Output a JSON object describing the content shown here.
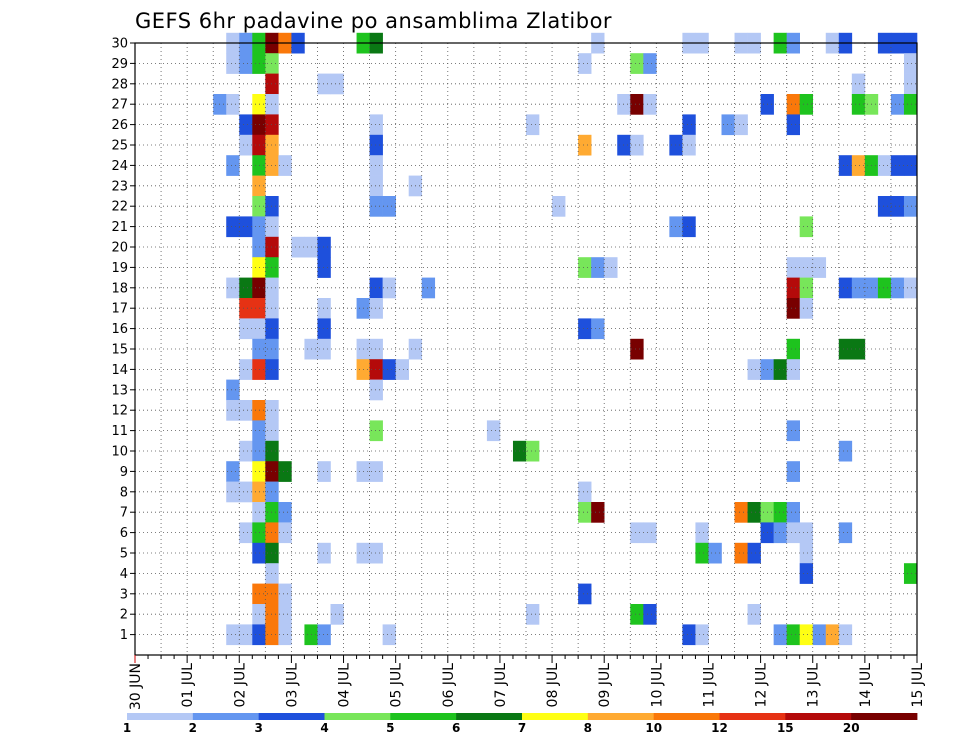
{
  "chart_data": {
    "type": "heatmap",
    "title": "GEFS 6hr padavine po ansamblima Zlatibor",
    "x_tick_labels": [
      "30 JUN",
      "01 JUL",
      "02 JUL",
      "03 JUL",
      "04 JUL",
      "05 JUL",
      "06 JUL",
      "07 JUL",
      "08 JUL",
      "09 JUL",
      "10 JUL",
      "11 JUL",
      "12 JUL",
      "13 JUL",
      "14 JUL",
      "15 JUL"
    ],
    "y_tick_labels": [
      "1",
      "2",
      "3",
      "4",
      "5",
      "6",
      "7",
      "8",
      "9",
      "10",
      "11",
      "12",
      "13",
      "14",
      "15",
      "16",
      "17",
      "18",
      "19",
      "20",
      "21",
      "22",
      "23",
      "24",
      "25",
      "26",
      "27",
      "28",
      "29",
      "30"
    ],
    "xlim": [
      0,
      60
    ],
    "ylim": [
      0,
      30
    ],
    "grid": "dotted",
    "legend": {
      "placement": "bottom",
      "labels": [
        "1",
        "2",
        "3",
        "4",
        "5",
        "6",
        "7",
        "8",
        "10",
        "12",
        "15",
        "20"
      ],
      "colors": [
        "#b4c8f5",
        "#6496f0",
        "#1e50dc",
        "#78e65a",
        "#1ec31e",
        "#0a7814",
        "#ffff14",
        "#ffaa32",
        "#fa780a",
        "#e63214",
        "#b40a0a",
        "#780000"
      ]
    },
    "cells_note": "each cell: [x_step (6-hourly step from 30 JUN 00Z), member (0-30), color class index 0-11]",
    "cells": [
      [
        7,
        30,
        0
      ],
      [
        8,
        30,
        1
      ],
      [
        9,
        30,
        4
      ],
      [
        10,
        30,
        11
      ],
      [
        11,
        30,
        8
      ],
      [
        12,
        30,
        2
      ],
      [
        17,
        30,
        4
      ],
      [
        18,
        30,
        5
      ],
      [
        35,
        30,
        0
      ],
      [
        42,
        30,
        0
      ],
      [
        43,
        30,
        0
      ],
      [
        46,
        30,
        0
      ],
      [
        47,
        30,
        0
      ],
      [
        49,
        30,
        4
      ],
      [
        50,
        30,
        1
      ],
      [
        53,
        30,
        0
      ],
      [
        54,
        30,
        2
      ],
      [
        57,
        30,
        2
      ],
      [
        58,
        30,
        2
      ],
      [
        59,
        30,
        2
      ],
      [
        7,
        29,
        0
      ],
      [
        8,
        29,
        1
      ],
      [
        9,
        29,
        4
      ],
      [
        10,
        29,
        3
      ],
      [
        34,
        29,
        0
      ],
      [
        38,
        29,
        3
      ],
      [
        39,
        29,
        1
      ],
      [
        59,
        29,
        0
      ],
      [
        10,
        28,
        10
      ],
      [
        14,
        28,
        0
      ],
      [
        15,
        28,
        0
      ],
      [
        55,
        28,
        0
      ],
      [
        59,
        28,
        0
      ],
      [
        6,
        27,
        1
      ],
      [
        7,
        27,
        0
      ],
      [
        9,
        27,
        6
      ],
      [
        10,
        27,
        0
      ],
      [
        37,
        27,
        0
      ],
      [
        38,
        27,
        11
      ],
      [
        39,
        27,
        0
      ],
      [
        48,
        27,
        2
      ],
      [
        50,
        27,
        8
      ],
      [
        51,
        27,
        4
      ],
      [
        55,
        27,
        4
      ],
      [
        56,
        27,
        3
      ],
      [
        58,
        27,
        1
      ],
      [
        59,
        27,
        4
      ],
      [
        8,
        26,
        2
      ],
      [
        9,
        26,
        11
      ],
      [
        10,
        26,
        10
      ],
      [
        18,
        26,
        0
      ],
      [
        30,
        26,
        0
      ],
      [
        42,
        26,
        2
      ],
      [
        45,
        26,
        1
      ],
      [
        46,
        26,
        0
      ],
      [
        50,
        26,
        2
      ],
      [
        8,
        25,
        0
      ],
      [
        9,
        25,
        10
      ],
      [
        10,
        25,
        7
      ],
      [
        18,
        25,
        2
      ],
      [
        34,
        25,
        7
      ],
      [
        37,
        25,
        2
      ],
      [
        38,
        25,
        0
      ],
      [
        41,
        25,
        2
      ],
      [
        42,
        25,
        0
      ],
      [
        7,
        24,
        1
      ],
      [
        9,
        24,
        4
      ],
      [
        10,
        24,
        7
      ],
      [
        11,
        24,
        0
      ],
      [
        18,
        24,
        0
      ],
      [
        54,
        24,
        2
      ],
      [
        55,
        24,
        7
      ],
      [
        56,
        24,
        4
      ],
      [
        57,
        24,
        0
      ],
      [
        58,
        24,
        2
      ],
      [
        59,
        24,
        2
      ],
      [
        9,
        23,
        7
      ],
      [
        18,
        23,
        0
      ],
      [
        21,
        23,
        0
      ],
      [
        9,
        22,
        3
      ],
      [
        10,
        22,
        2
      ],
      [
        18,
        22,
        1
      ],
      [
        19,
        22,
        1
      ],
      [
        32,
        22,
        0
      ],
      [
        57,
        22,
        2
      ],
      [
        58,
        22,
        2
      ],
      [
        59,
        22,
        1
      ],
      [
        7,
        21,
        2
      ],
      [
        8,
        21,
        2
      ],
      [
        9,
        21,
        1
      ],
      [
        10,
        21,
        0
      ],
      [
        41,
        21,
        1
      ],
      [
        42,
        21,
        2
      ],
      [
        51,
        21,
        3
      ],
      [
        9,
        20,
        1
      ],
      [
        10,
        20,
        10
      ],
      [
        12,
        20,
        0
      ],
      [
        13,
        20,
        0
      ],
      [
        14,
        20,
        2
      ],
      [
        9,
        19,
        6
      ],
      [
        10,
        19,
        4
      ],
      [
        14,
        19,
        2
      ],
      [
        34,
        19,
        3
      ],
      [
        35,
        19,
        1
      ],
      [
        36,
        19,
        0
      ],
      [
        50,
        19,
        0
      ],
      [
        51,
        19,
        0
      ],
      [
        52,
        19,
        0
      ],
      [
        7,
        18,
        0
      ],
      [
        8,
        18,
        5
      ],
      [
        9,
        18,
        11
      ],
      [
        10,
        18,
        0
      ],
      [
        18,
        18,
        2
      ],
      [
        19,
        18,
        0
      ],
      [
        22,
        18,
        1
      ],
      [
        50,
        18,
        10
      ],
      [
        51,
        18,
        3
      ],
      [
        54,
        18,
        2
      ],
      [
        55,
        18,
        1
      ],
      [
        56,
        18,
        1
      ],
      [
        57,
        18,
        4
      ],
      [
        58,
        18,
        1
      ],
      [
        59,
        18,
        0
      ],
      [
        8,
        17,
        9
      ],
      [
        9,
        17,
        9
      ],
      [
        10,
        17,
        0
      ],
      [
        14,
        17,
        0
      ],
      [
        17,
        17,
        1
      ],
      [
        18,
        17,
        0
      ],
      [
        50,
        17,
        11
      ],
      [
        51,
        17,
        0
      ],
      [
        8,
        16,
        0
      ],
      [
        9,
        16,
        0
      ],
      [
        10,
        16,
        2
      ],
      [
        14,
        16,
        2
      ],
      [
        34,
        16,
        2
      ],
      [
        35,
        16,
        1
      ],
      [
        9,
        15,
        1
      ],
      [
        10,
        15,
        1
      ],
      [
        13,
        15,
        0
      ],
      [
        14,
        15,
        0
      ],
      [
        17,
        15,
        0
      ],
      [
        18,
        15,
        0
      ],
      [
        21,
        15,
        0
      ],
      [
        38,
        15,
        11
      ],
      [
        50,
        15,
        4
      ],
      [
        54,
        15,
        5
      ],
      [
        55,
        15,
        5
      ],
      [
        8,
        14,
        0
      ],
      [
        9,
        14,
        9
      ],
      [
        10,
        14,
        2
      ],
      [
        17,
        14,
        7
      ],
      [
        18,
        14,
        10
      ],
      [
        19,
        14,
        2
      ],
      [
        20,
        14,
        0
      ],
      [
        47,
        14,
        0
      ],
      [
        48,
        14,
        1
      ],
      [
        49,
        14,
        5
      ],
      [
        50,
        14,
        0
      ],
      [
        7,
        13,
        1
      ],
      [
        18,
        13,
        0
      ],
      [
        7,
        12,
        0
      ],
      [
        8,
        12,
        0
      ],
      [
        9,
        12,
        8
      ],
      [
        10,
        12,
        0
      ],
      [
        9,
        11,
        1
      ],
      [
        10,
        11,
        0
      ],
      [
        18,
        11,
        3
      ],
      [
        27,
        11,
        0
      ],
      [
        50,
        11,
        1
      ],
      [
        8,
        10,
        0
      ],
      [
        9,
        10,
        1
      ],
      [
        10,
        10,
        5
      ],
      [
        29,
        10,
        5
      ],
      [
        30,
        10,
        3
      ],
      [
        54,
        10,
        1
      ],
      [
        7,
        9,
        1
      ],
      [
        9,
        9,
        6
      ],
      [
        10,
        9,
        11
      ],
      [
        11,
        9,
        5
      ],
      [
        14,
        9,
        0
      ],
      [
        17,
        9,
        0
      ],
      [
        18,
        9,
        0
      ],
      [
        50,
        9,
        1
      ],
      [
        7,
        8,
        0
      ],
      [
        8,
        8,
        0
      ],
      [
        9,
        8,
        7
      ],
      [
        10,
        8,
        1
      ],
      [
        34,
        8,
        0
      ],
      [
        9,
        7,
        0
      ],
      [
        10,
        7,
        4
      ],
      [
        11,
        7,
        1
      ],
      [
        34,
        7,
        3
      ],
      [
        35,
        7,
        11
      ],
      [
        46,
        7,
        8
      ],
      [
        47,
        7,
        5
      ],
      [
        48,
        7,
        3
      ],
      [
        49,
        7,
        4
      ],
      [
        50,
        7,
        1
      ],
      [
        8,
        6,
        0
      ],
      [
        9,
        6,
        4
      ],
      [
        10,
        6,
        8
      ],
      [
        11,
        6,
        0
      ],
      [
        38,
        6,
        0
      ],
      [
        39,
        6,
        0
      ],
      [
        43,
        6,
        0
      ],
      [
        48,
        6,
        2
      ],
      [
        49,
        6,
        1
      ],
      [
        50,
        6,
        0
      ],
      [
        51,
        6,
        0
      ],
      [
        54,
        6,
        1
      ],
      [
        9,
        5,
        2
      ],
      [
        10,
        5,
        5
      ],
      [
        14,
        5,
        0
      ],
      [
        17,
        5,
        0
      ],
      [
        18,
        5,
        0
      ],
      [
        43,
        5,
        4
      ],
      [
        44,
        5,
        1
      ],
      [
        46,
        5,
        8
      ],
      [
        47,
        5,
        2
      ],
      [
        51,
        5,
        0
      ],
      [
        10,
        4,
        0
      ],
      [
        51,
        4,
        2
      ],
      [
        59,
        4,
        4
      ],
      [
        9,
        3,
        8
      ],
      [
        10,
        3,
        8
      ],
      [
        11,
        3,
        0
      ],
      [
        34,
        3,
        2
      ],
      [
        9,
        2,
        0
      ],
      [
        10,
        2,
        8
      ],
      [
        11,
        2,
        0
      ],
      [
        15,
        2,
        0
      ],
      [
        30,
        2,
        0
      ],
      [
        38,
        2,
        4
      ],
      [
        39,
        2,
        2
      ],
      [
        47,
        2,
        0
      ],
      [
        7,
        1,
        0
      ],
      [
        8,
        1,
        0
      ],
      [
        9,
        1,
        2
      ],
      [
        10,
        1,
        8
      ],
      [
        11,
        1,
        0
      ],
      [
        13,
        1,
        4
      ],
      [
        14,
        1,
        1
      ],
      [
        19,
        1,
        0
      ],
      [
        42,
        1,
        2
      ],
      [
        43,
        1,
        0
      ],
      [
        49,
        1,
        1
      ],
      [
        50,
        1,
        4
      ],
      [
        51,
        1,
        6
      ],
      [
        52,
        1,
        1
      ],
      [
        53,
        1,
        7
      ],
      [
        54,
        1,
        0
      ]
    ]
  }
}
